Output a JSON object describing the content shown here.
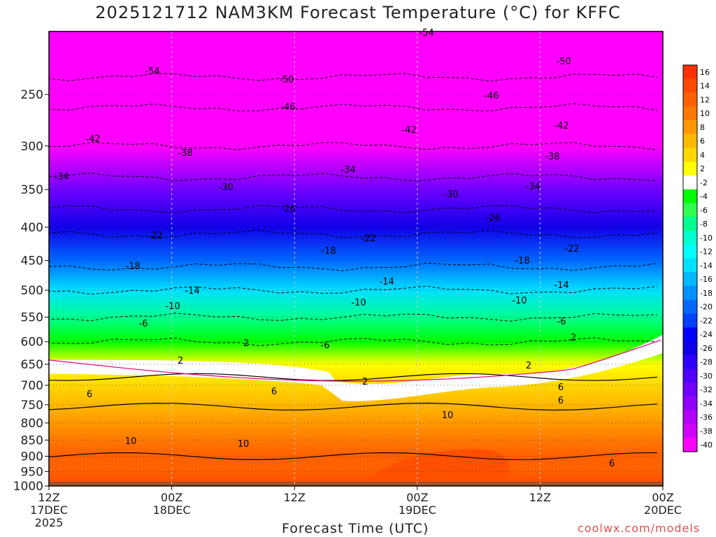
{
  "title": "2025121712 NAM3KM Forecast Temperature (°C) for KFFC",
  "credit": "coolwx.com/models",
  "chart_data": {
    "type": "heatmap",
    "title": "2025121712 NAM3KM Forecast Temperature (°C) for KFFC",
    "xlabel": "Forecast Time (UTC)",
    "ylabel": "",
    "y_scale": "log-pressure (inverted)",
    "ylim": [
      1000,
      200
    ],
    "y_ticks": [
      250,
      300,
      350,
      400,
      450,
      500,
      550,
      600,
      650,
      700,
      750,
      800,
      850,
      900,
      950,
      1000
    ],
    "x_ticks": [
      {
        "line1": "12Z",
        "line2": "17DEC",
        "line3": "2025"
      },
      {
        "line1": "00Z",
        "line2": "18DEC",
        "line3": ""
      },
      {
        "line1": "12Z",
        "line2": "",
        "line3": ""
      },
      {
        "line1": "00Z",
        "line2": "19DEC",
        "line3": ""
      },
      {
        "line1": "12Z",
        "line2": "",
        "line3": ""
      },
      {
        "line1": "00Z",
        "line2": "20DEC",
        "line3": ""
      }
    ],
    "x_hours": [
      0,
      12,
      24,
      36,
      48,
      60
    ],
    "colorbar_levels": [
      16,
      14,
      12,
      10,
      8,
      6,
      4,
      2,
      -2,
      -4,
      -6,
      -8,
      -10,
      -12,
      -14,
      -16,
      -18,
      -20,
      -22,
      -24,
      -26,
      -28,
      -30,
      -32,
      -34,
      -36,
      -38,
      -40
    ],
    "colorbar_colors": [
      "#ff3000",
      "#ff4800",
      "#ff6000",
      "#ff7800",
      "#ff9800",
      "#ffb800",
      "#ffd800",
      "#ffff00",
      "#ffffff",
      "#00ff00",
      "#30ff50",
      "#00ff90",
      "#00ffd0",
      "#00ffff",
      "#00e0ff",
      "#00b8ff",
      "#0090ff",
      "#0068ff",
      "#0040ff",
      "#0000ff",
      "#1000e8",
      "#3000ff",
      "#5000ff",
      "#7000ff",
      "#9000ff",
      "#b000ff",
      "#d000ff",
      "#ff00ff"
    ],
    "temperature_profile_by_pressure": [
      {
        "p": 1000,
        "t": 12
      },
      {
        "p": 950,
        "t": 11
      },
      {
        "p": 900,
        "t": 10
      },
      {
        "p": 850,
        "t": 9
      },
      {
        "p": 800,
        "t": 7
      },
      {
        "p": 750,
        "t": 5
      },
      {
        "p": 700,
        "t": 3
      },
      {
        "p": 650,
        "t": 0
      },
      {
        "p": 600,
        "t": -5
      },
      {
        "p": 550,
        "t": -10
      },
      {
        "p": 500,
        "t": -15
      },
      {
        "p": 450,
        "t": -21
      },
      {
        "p": 400,
        "t": -27
      },
      {
        "p": 350,
        "t": -33
      },
      {
        "p": 300,
        "t": -41
      },
      {
        "p": 250,
        "t": -49
      }
    ],
    "contour_labels": [
      "-54",
      "-54",
      "-50",
      "-50",
      "-46",
      "-46",
      "-42",
      "-42",
      "-42",
      "-38",
      "-38",
      "-34",
      "-34",
      "-34",
      "-30",
      "-30",
      "-26",
      "-26",
      "-22",
      "-22",
      "-22",
      "-18",
      "-18",
      "-18",
      "-14",
      "-14",
      "-14",
      "-10",
      "-10",
      "-10",
      "-6",
      "-6",
      "-6",
      "2",
      "2",
      "2",
      "2",
      "2",
      "6",
      "6",
      "6",
      "6",
      "10",
      "10",
      "10",
      "6"
    ]
  }
}
